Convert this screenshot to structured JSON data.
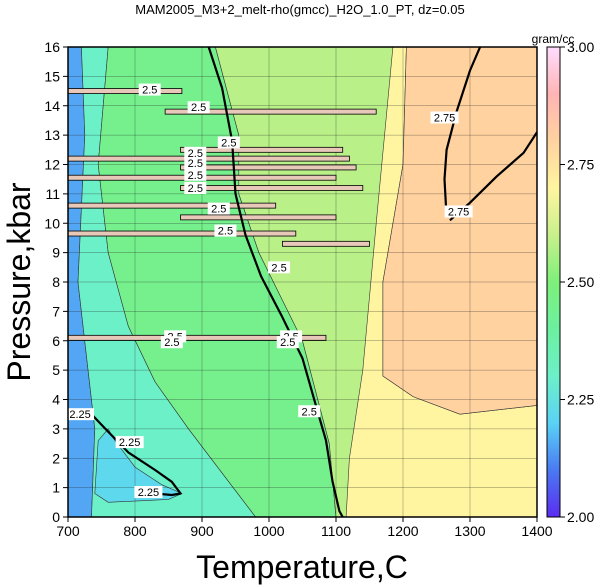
{
  "chart_data": {
    "type": "heatmap",
    "title": "MAM2005_M3+2_melt-rho(gmcc)_H2O_1.0_PT, dz=0.05",
    "xlabel": "Temperature,C",
    "ylabel": "Pressure,kbar",
    "xlim": [
      700,
      1400
    ],
    "ylim": [
      0,
      16
    ],
    "x_ticks": [
      "700",
      "800",
      "900",
      "1000",
      "1100",
      "1200",
      "1300",
      "1400"
    ],
    "y_ticks": [
      "0",
      "1",
      "2",
      "3",
      "4",
      "5",
      "6",
      "7",
      "8",
      "9",
      "10",
      "11",
      "12",
      "13",
      "14",
      "15",
      "16"
    ],
    "grid": true,
    "colorbar": {
      "unit": "gram/cc",
      "range": [
        2.0,
        3.0
      ],
      "ticks": [
        "2.00",
        "2.25",
        "2.50",
        "2.75",
        "3.00"
      ],
      "colors": [
        {
          "v": 2.0,
          "c": "#5a2df0"
        },
        {
          "v": 2.1,
          "c": "#4a7af2"
        },
        {
          "v": 2.2,
          "c": "#5ad2f5"
        },
        {
          "v": 2.3,
          "c": "#6cf0c8"
        },
        {
          "v": 2.4,
          "c": "#6cf0a0"
        },
        {
          "v": 2.5,
          "c": "#7ef07a"
        },
        {
          "v": 2.6,
          "c": "#c8f08c"
        },
        {
          "v": 2.7,
          "c": "#fff5a0"
        },
        {
          "v": 2.8,
          "c": "#ffd2a0"
        },
        {
          "v": 2.9,
          "c": "#ffb4b4"
        },
        {
          "v": 3.0,
          "c": "#ffdcff"
        }
      ]
    },
    "regions": [
      {
        "name": "low-density-strip",
        "value": 2.15,
        "points": [
          [
            700,
            0
          ],
          [
            735,
            0
          ],
          [
            740,
            3
          ],
          [
            715,
            8
          ],
          [
            725,
            13
          ],
          [
            720,
            16
          ],
          [
            700,
            16
          ]
        ]
      },
      {
        "name": "cool-melt-field",
        "value": 2.3,
        "points": [
          [
            735,
            0
          ],
          [
            980,
            0
          ],
          [
            940,
            1.2
          ],
          [
            880,
            3.0
          ],
          [
            830,
            4.6
          ],
          [
            790,
            6.5
          ],
          [
            760,
            9
          ],
          [
            745,
            12
          ],
          [
            760,
            16
          ],
          [
            720,
            16
          ],
          [
            725,
            13
          ],
          [
            715,
            8
          ],
          [
            740,
            3
          ]
        ]
      },
      {
        "name": "low-density-pocket",
        "value": 2.22,
        "points": [
          [
            740,
            0.8
          ],
          [
            760,
            0.5
          ],
          [
            850,
            0.6
          ],
          [
            870,
            0.8
          ],
          [
            840,
            1.1
          ],
          [
            800,
            1.7
          ],
          [
            770,
            2.6
          ],
          [
            760,
            3.0
          ],
          [
            745,
            2.6
          ]
        ]
      },
      {
        "name": "green-field",
        "value": 2.45,
        "points": [
          [
            980,
            0
          ],
          [
            1100,
            0
          ],
          [
            1090,
            2.5
          ],
          [
            1050,
            6
          ],
          [
            985,
            9
          ],
          [
            955,
            11
          ],
          [
            955,
            13
          ],
          [
            920,
            16
          ],
          [
            760,
            16
          ],
          [
            745,
            12
          ],
          [
            760,
            9
          ],
          [
            790,
            6.5
          ],
          [
            830,
            4.6
          ],
          [
            880,
            3.0
          ],
          [
            940,
            1.2
          ]
        ]
      },
      {
        "name": "transition-field",
        "value": 2.58,
        "points": [
          [
            1100,
            0
          ],
          [
            1400,
            0
          ],
          [
            1400,
            9
          ],
          [
            1200,
            16
          ],
          [
            920,
            16
          ],
          [
            955,
            13
          ],
          [
            955,
            11
          ],
          [
            985,
            9
          ],
          [
            1050,
            6
          ],
          [
            1090,
            2.5
          ]
        ]
      },
      {
        "name": "yellow-field",
        "value": 2.7,
        "points": [
          [
            1115,
            0
          ],
          [
            1400,
            0
          ],
          [
            1400,
            3.8
          ],
          [
            1285,
            3.5
          ],
          [
            1215,
            4.1
          ],
          [
            1170,
            4.8
          ],
          [
            1170,
            8
          ],
          [
            1200,
            12
          ],
          [
            1205,
            16
          ],
          [
            1185,
            16
          ],
          [
            1160,
            10
          ],
          [
            1140,
            5
          ],
          [
            1120,
            2
          ]
        ]
      },
      {
        "name": "orange-field",
        "value": 2.8,
        "points": [
          [
            1400,
            3.8
          ],
          [
            1400,
            16
          ],
          [
            1205,
            16
          ],
          [
            1200,
            12
          ],
          [
            1170,
            8
          ],
          [
            1170,
            4.8
          ],
          [
            1215,
            4.1
          ],
          [
            1285,
            3.5
          ]
        ]
      }
    ],
    "contours": [
      {
        "level": "2.25",
        "points": [
          [
            735,
            3.5
          ],
          [
            760,
            2.9
          ],
          [
            790,
            2.2
          ],
          [
            830,
            1.6
          ],
          [
            855,
            1.2
          ],
          [
            868,
            0.8
          ],
          [
            855,
            0.75
          ],
          [
            830,
            0.8
          ]
        ]
      },
      {
        "level": "2.5",
        "points": [
          [
            1110,
            0
          ],
          [
            1105,
            0.2
          ],
          [
            1095,
            1.2
          ],
          [
            1085,
            2.6
          ],
          [
            1070,
            3.8
          ],
          [
            1050,
            5.4
          ],
          [
            1020,
            6.8
          ],
          [
            988,
            8.2
          ],
          [
            965,
            9.6
          ],
          [
            950,
            11
          ],
          [
            945,
            12.8
          ],
          [
            930,
            14.6
          ],
          [
            910,
            16
          ]
        ]
      },
      {
        "level": "2.75",
        "points": [
          [
            1265,
            10.2
          ],
          [
            1262,
            11.5
          ],
          [
            1265,
            12.5
          ],
          [
            1280,
            13.8
          ],
          [
            1300,
            15.2
          ],
          [
            1315,
            16
          ]
        ]
      },
      {
        "level": "2.75",
        "points": [
          [
            1270,
            10.1
          ],
          [
            1300,
            10.7
          ],
          [
            1340,
            11.6
          ],
          [
            1380,
            12.4
          ],
          [
            1400,
            13.1
          ]
        ]
      }
    ],
    "artifact_bands": [
      {
        "p": 14.5,
        "x0": 700,
        "x1": 870
      },
      {
        "p": 13.8,
        "x0": 845,
        "x1": 1160
      },
      {
        "p": 12.5,
        "x0": 868,
        "x1": 1110
      },
      {
        "p": 12.2,
        "x0": 700,
        "x1": 1120
      },
      {
        "p": 11.9,
        "x0": 868,
        "x1": 1130
      },
      {
        "p": 11.55,
        "x0": 700,
        "x1": 1100
      },
      {
        "p": 11.2,
        "x0": 868,
        "x1": 1140
      },
      {
        "p": 10.6,
        "x0": 700,
        "x1": 1010
      },
      {
        "p": 10.2,
        "x0": 868,
        "x1": 1100
      },
      {
        "p": 9.65,
        "x0": 700,
        "x1": 1040
      },
      {
        "p": 9.3,
        "x0": 1020,
        "x1": 1150
      },
      {
        "p": 6.1,
        "x0": 700,
        "x1": 1085
      }
    ],
    "contour_labels": [
      {
        "text": "2.5",
        "t": 822,
        "p": 14.55
      },
      {
        "text": "2.5",
        "t": 895,
        "p": 13.95
      },
      {
        "text": "2.5",
        "t": 940,
        "p": 12.75
      },
      {
        "text": "2.5",
        "t": 890,
        "p": 12.4
      },
      {
        "text": "2.5",
        "t": 890,
        "p": 12.05
      },
      {
        "text": "2.5",
        "t": 890,
        "p": 11.65
      },
      {
        "text": "2.5",
        "t": 890,
        "p": 11.2
      },
      {
        "text": "2.5",
        "t": 925,
        "p": 10.5
      },
      {
        "text": "2.5",
        "t": 935,
        "p": 9.75
      },
      {
        "text": "2.5",
        "t": 1015,
        "p": 8.5
      },
      {
        "text": "2.5",
        "t": 860,
        "p": 6.15
      },
      {
        "text": "2.5",
        "t": 855,
        "p": 5.95
      },
      {
        "text": "2.5",
        "t": 1033,
        "p": 6.15
      },
      {
        "text": "2.5",
        "t": 1028,
        "p": 5.95
      },
      {
        "text": "2.5",
        "t": 1060,
        "p": 3.6
      },
      {
        "text": "2.25",
        "t": 718,
        "p": 3.5
      },
      {
        "text": "2.25",
        "t": 792,
        "p": 2.55
      },
      {
        "text": "2.25",
        "t": 820,
        "p": 0.85
      },
      {
        "text": "2.75",
        "t": 1262,
        "p": 13.6
      },
      {
        "text": "2.75",
        "t": 1283,
        "p": 10.4
      }
    ]
  }
}
